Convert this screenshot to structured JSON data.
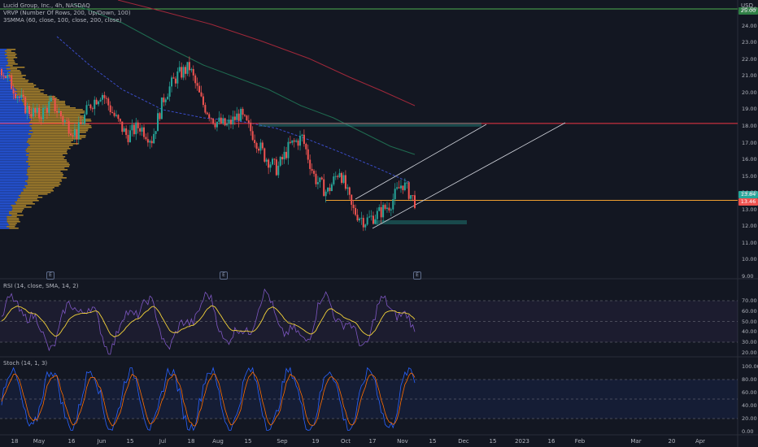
{
  "symbol_title": "Lucid Group, Inc., 4h, NASDAQ",
  "currency": "USD",
  "indicators": {
    "vrvp": "VRVP (Number Of Rows, 200, Up/Down, 100)",
    "smma": "3SMMA (60, close, 100, close, 200, close)",
    "rsi": "RSI (14, close, SMA, 14, 2)",
    "stoch": "Stoch (14, 1, 3)"
  },
  "price_tags": {
    "current": "13.84",
    "last": "13.46"
  },
  "top_tag": "25.00",
  "colors": {
    "background": "#131722",
    "up": "#26a69a",
    "down": "#ef5350",
    "smma_fast": "#3a4cc8",
    "smma_mid": "#1f6b50",
    "smma_slow": "#a0283a",
    "hline_red": "#f23645",
    "hline_orange": "#f0a030",
    "vrvp_up": "#2962ff",
    "vrvp_down": "#c99a2e",
    "rsi": "#7e57c2",
    "rsi_ma": "#f5d43a",
    "stoch_k": "#2962ff",
    "stoch_d": "#ff6d00"
  },
  "chart_data": {
    "type": "candlestick",
    "price_axis": {
      "ticks": [
        "25.00",
        "24.00",
        "23.00",
        "22.00",
        "21.00",
        "20.00",
        "19.00",
        "18.00",
        "17.00",
        "16.00",
        "15.00",
        "14.00",
        "13.00",
        "12.00",
        "11.00",
        "10.00",
        "9.00"
      ],
      "ylim": [
        9,
        25.2
      ]
    },
    "time_axis": [
      "18",
      "May",
      "16",
      "Jun",
      "15",
      "Jul",
      "18",
      "Aug",
      "15",
      "Sep",
      "19",
      "Oct",
      "17",
      "Nov",
      "15",
      "Dec",
      "15",
      "2023",
      "16",
      "Feb",
      "Mar",
      "20",
      "Apr"
    ],
    "events": [
      "E",
      "E",
      "E"
    ],
    "levels": {
      "resistance_red": 18.15,
      "current_orange": 13.55
    },
    "approx_close_path": [
      21.4,
      20.2,
      19.0,
      18.6,
      19.4,
      18.3,
      17.5,
      19.2,
      20.0,
      18.6,
      17.4,
      18.0,
      17.2,
      19.8,
      21.0,
      21.5,
      19.4,
      18.3,
      18.0,
      18.7,
      17.6,
      16.2,
      15.4,
      16.8,
      17.3,
      14.9,
      14.0,
      15.4,
      13.0,
      12.3,
      12.7,
      13.3,
      14.6,
      13.5
    ],
    "rsi_axis": [
      "70.00",
      "60.00",
      "50.00",
      "40.00",
      "30.00",
      "20.00"
    ],
    "stoch_axis": [
      "100.00",
      "80.00",
      "60.00",
      "40.00",
      "20.00",
      "0.00"
    ]
  }
}
